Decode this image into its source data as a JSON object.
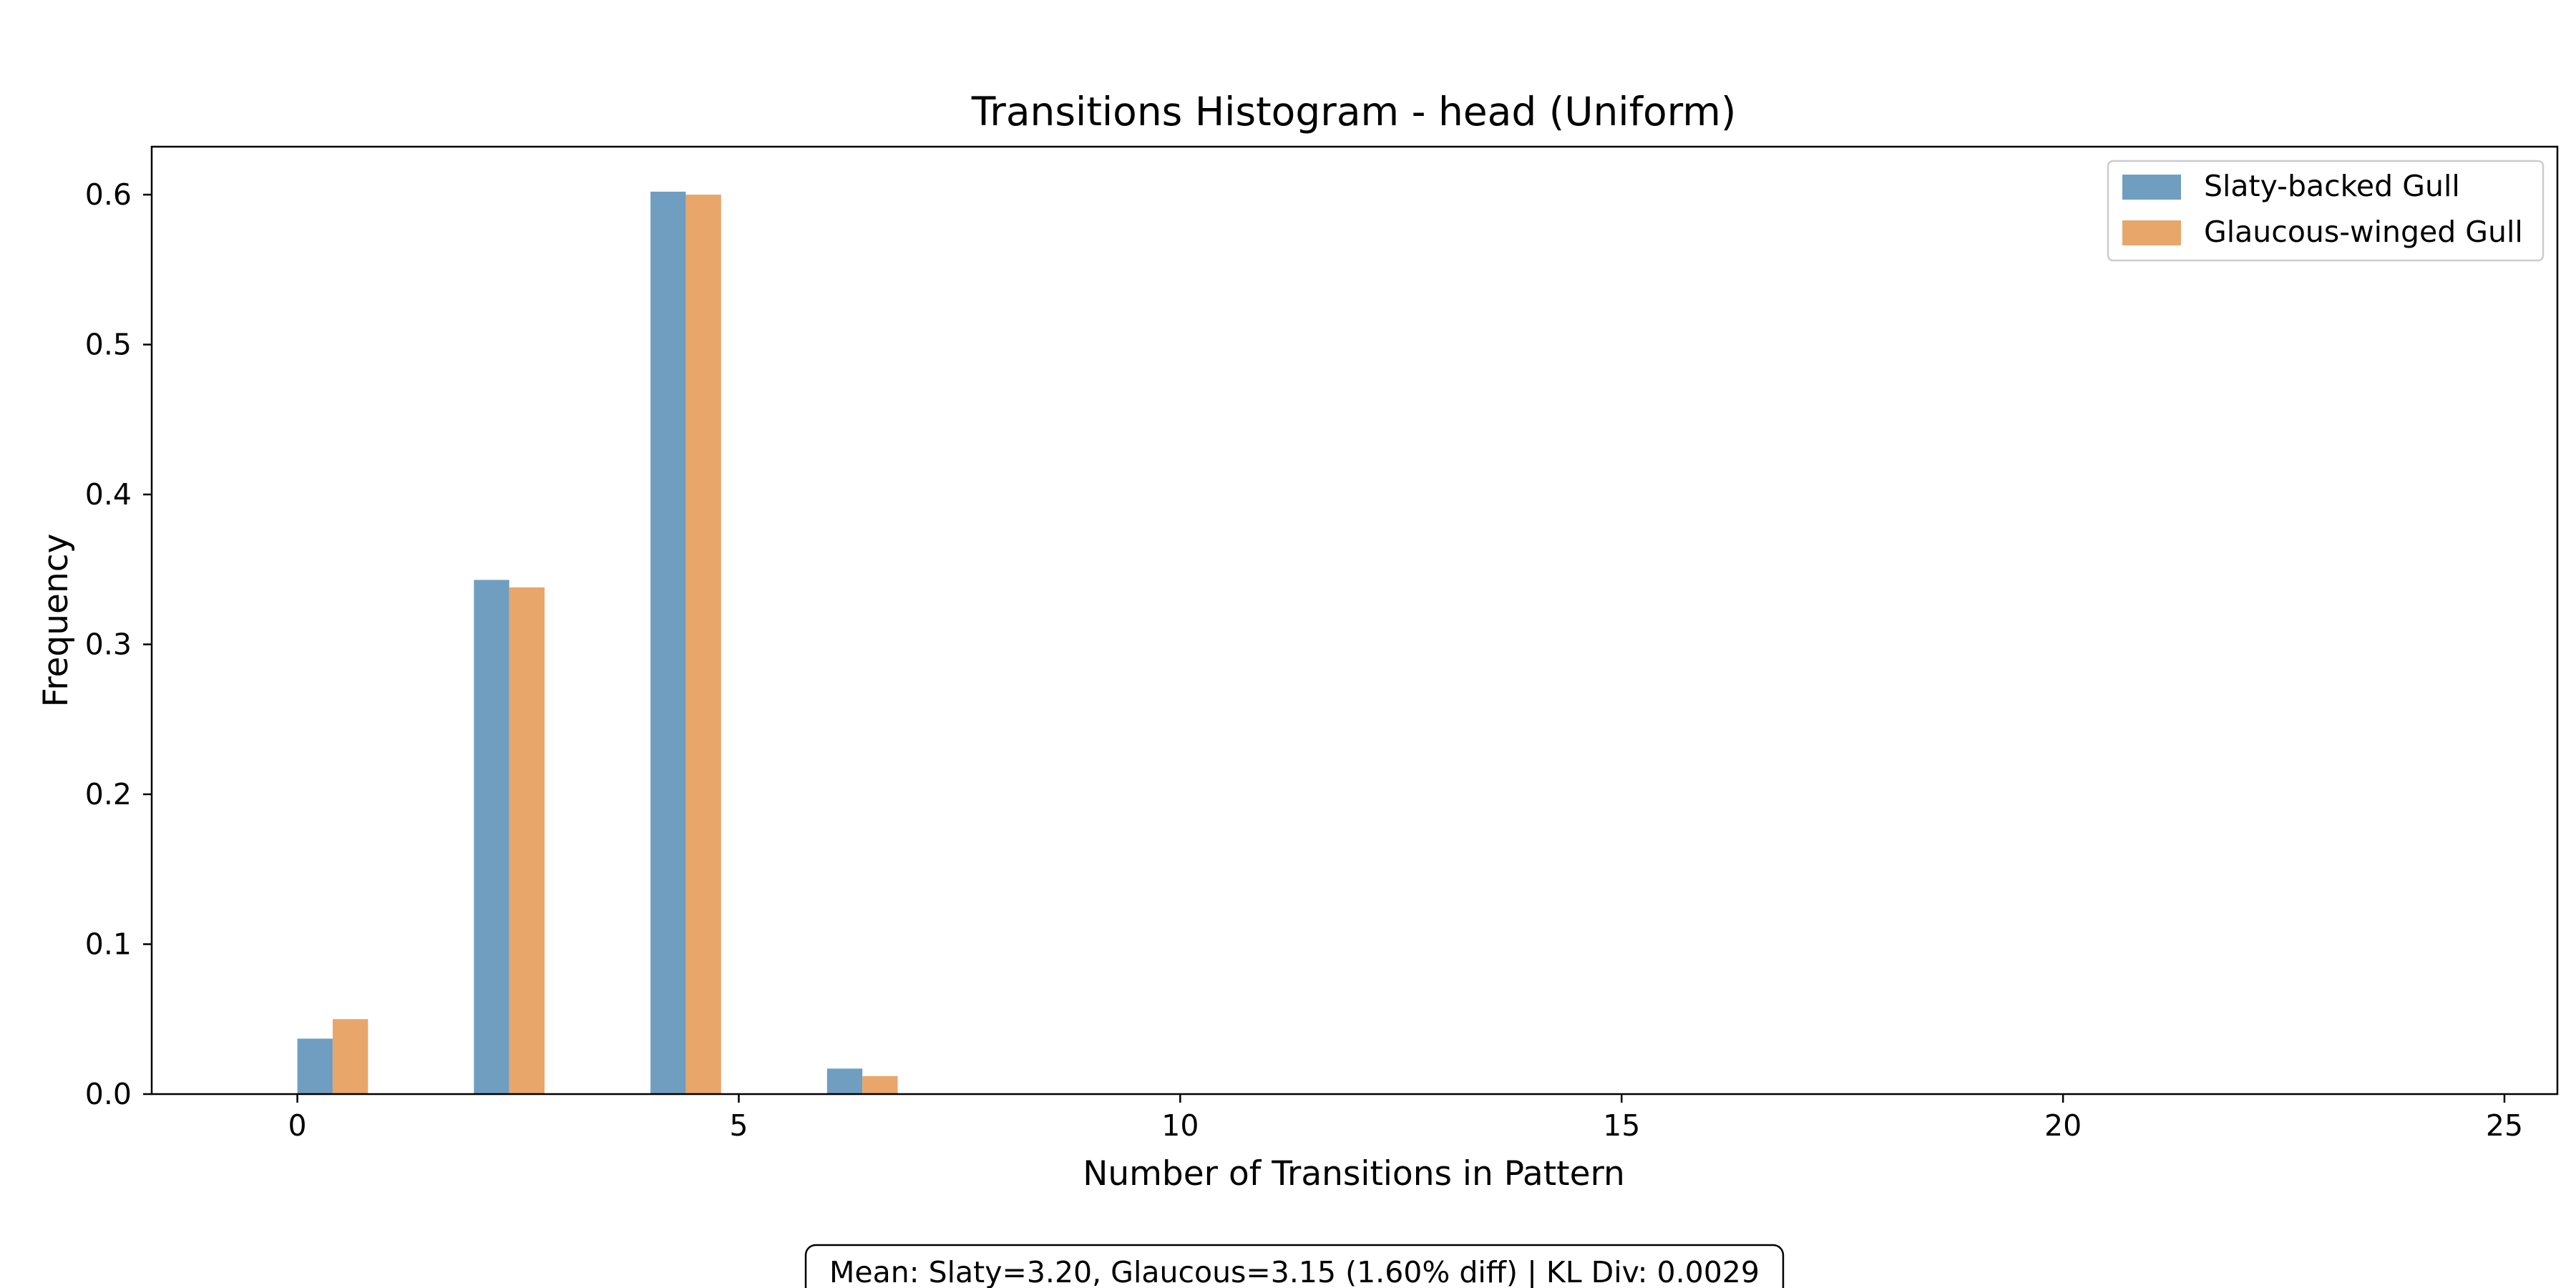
{
  "chart_data": {
    "type": "bar",
    "title": "Transitions Histogram - head (Uniform)",
    "xlabel": "Number of Transitions in Pattern",
    "ylabel": "Frequency",
    "xlim": [
      -1.65,
      25.6
    ],
    "ylim": [
      0,
      0.632
    ],
    "xticks": [
      0,
      5,
      10,
      15,
      20,
      25
    ],
    "yticks": [
      0.0,
      0.1,
      0.2,
      0.3,
      0.4,
      0.5,
      0.6
    ],
    "xtick_labels": [
      "0",
      "5",
      "10",
      "15",
      "20",
      "25"
    ],
    "ytick_labels": [
      "0.0",
      "0.1",
      "0.2",
      "0.3",
      "0.4",
      "0.5",
      "0.6"
    ],
    "x": [
      0,
      2,
      4,
      6
    ],
    "bar_width": 0.4,
    "grid": false,
    "legend_position": "top-right",
    "series": [
      {
        "name": "Slaty-backed Gull",
        "color": "#6f9ec0",
        "values": [
          0.037,
          0.343,
          0.602,
          0.017
        ]
      },
      {
        "name": "Glaucous-winged Gull",
        "color": "#e8a66a",
        "values": [
          0.05,
          0.338,
          0.6,
          0.012
        ]
      }
    ],
    "annotation": "Mean: Slaty=3.20, Glaucous=3.15 (1.60% diff) | KL Div: 0.0029"
  }
}
